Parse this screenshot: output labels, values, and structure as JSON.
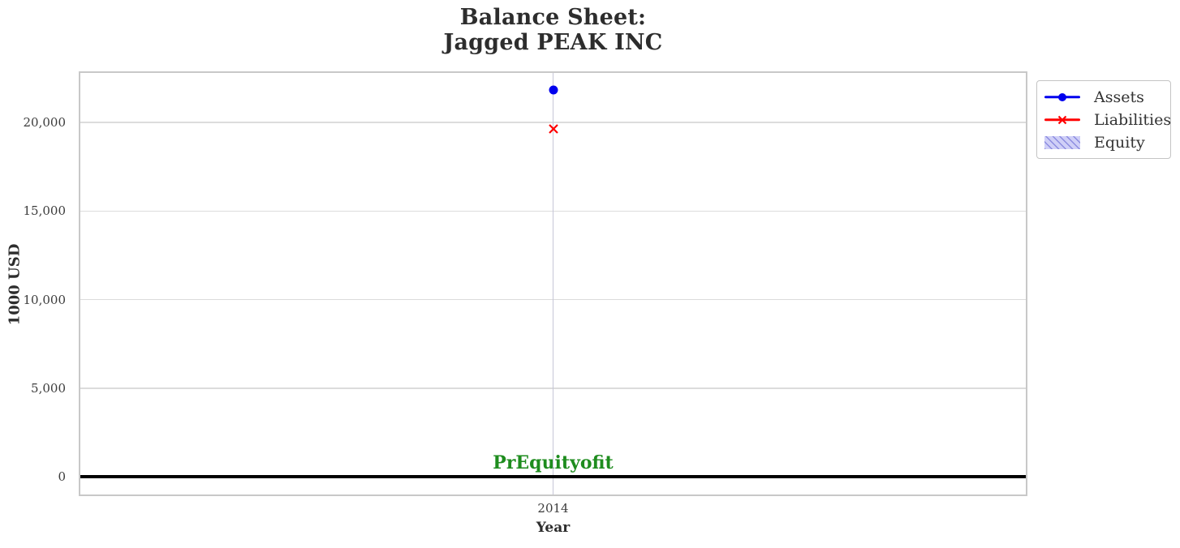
{
  "title": {
    "line1": "Balance Sheet:",
    "line2": "Jagged PEAK INC"
  },
  "axes": {
    "xlabel": "Year",
    "ylabel": "1000 USD",
    "xtick_labels": [
      "2014"
    ]
  },
  "annotation": {
    "text": "PrEquityofit",
    "color": "#1e8c1e"
  },
  "legend": {
    "items": [
      {
        "label": "Assets",
        "marker": "line-dot-icon",
        "color": "#0000ee"
      },
      {
        "label": "Liabilities",
        "marker": "line-x-icon",
        "color": "#ff0000"
      },
      {
        "label": "Equity",
        "marker": "hatched-patch-icon",
        "fill": "#cfcff7",
        "hatch": "#8c8ce0"
      }
    ]
  },
  "chart_data": {
    "type": "scatter",
    "title": "Balance Sheet: Jagged PEAK INC",
    "xlabel": "Year",
    "ylabel": "1000 USD",
    "x": [
      2014
    ],
    "xtick_labels": [
      "2014"
    ],
    "series": [
      {
        "name": "Assets",
        "values": [
          21850
        ],
        "color": "#0000ee",
        "marker": "circle"
      },
      {
        "name": "Liabilities",
        "values": [
          19650
        ],
        "color": "#ff0000",
        "marker": "x"
      },
      {
        "name": "Equity",
        "values": [
          0
        ],
        "color": "#000000",
        "marker": "area-line"
      }
    ],
    "ylim": [
      -1000,
      22800
    ],
    "yticks": [
      0,
      5000,
      10000,
      15000,
      20000
    ],
    "ytick_labels": [
      "0",
      "5,000",
      "10,000",
      "15,000",
      "20,000"
    ],
    "grid": true,
    "legend_position": "outside-upper-right",
    "colors": {
      "hgrid": "#dcdcdc",
      "vgrid": "#c6c6d8",
      "plot_border": "#c8c8c8",
      "annotation_green": "#1e8c1e"
    }
  }
}
